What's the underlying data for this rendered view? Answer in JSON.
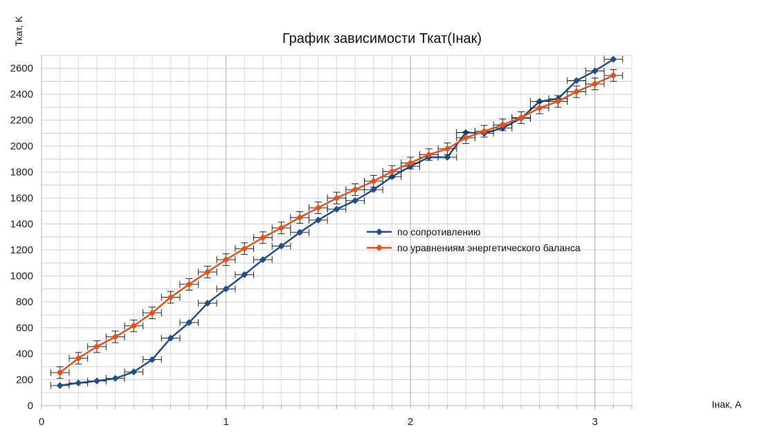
{
  "chart_data": {
    "type": "line",
    "title": "График зависимости Ткат(Iнак)",
    "xlabel": "Iнак, A",
    "ylabel": "Ткат, K",
    "xlim": [
      0,
      3.2
    ],
    "ylim": [
      0,
      2700
    ],
    "x_ticks": [
      0,
      1,
      2,
      3
    ],
    "y_ticks": [
      0,
      200,
      400,
      600,
      800,
      1000,
      1200,
      1400,
      1600,
      1800,
      2000,
      2200,
      2400,
      2600
    ],
    "x_minor_step": 0.1,
    "y_minor_step": 100,
    "grid": true,
    "legend_position": "center-right",
    "error_bars": {
      "x": 0.05,
      "y": 45
    },
    "series": [
      {
        "name": "по сопротивлению",
        "color": "#1f4e8c",
        "marker": "diamond",
        "show_y_error": false,
        "x": [
          0.1,
          0.2,
          0.3,
          0.4,
          0.5,
          0.6,
          0.7,
          0.8,
          0.9,
          1.0,
          1.1,
          1.2,
          1.3,
          1.4,
          1.5,
          1.6,
          1.7,
          1.8,
          1.9,
          2.0,
          2.1,
          2.2,
          2.3,
          2.4,
          2.5,
          2.6,
          2.7,
          2.8,
          2.9,
          3.0,
          3.1
        ],
        "y": [
          155,
          175,
          190,
          210,
          260,
          355,
          520,
          640,
          790,
          900,
          1010,
          1125,
          1230,
          1335,
          1430,
          1515,
          1580,
          1665,
          1765,
          1845,
          1915,
          1915,
          2105,
          2100,
          2140,
          2215,
          2345,
          2365,
          2505,
          2580,
          2670
        ]
      },
      {
        "name": "по уравнениям энергетического баланса",
        "color": "#e8501a",
        "marker": "diamond",
        "show_y_error": true,
        "x": [
          0.1,
          0.2,
          0.3,
          0.4,
          0.5,
          0.6,
          0.7,
          0.8,
          0.9,
          1.0,
          1.1,
          1.2,
          1.3,
          1.4,
          1.5,
          1.6,
          1.7,
          1.8,
          1.9,
          2.0,
          2.1,
          2.2,
          2.3,
          2.4,
          2.5,
          2.6,
          2.7,
          2.8,
          2.9,
          3.0,
          3.1
        ],
        "y": [
          255,
          365,
          455,
          530,
          615,
          715,
          835,
          935,
          1030,
          1125,
          1210,
          1295,
          1370,
          1450,
          1525,
          1600,
          1665,
          1730,
          1805,
          1870,
          1935,
          1980,
          2065,
          2115,
          2165,
          2220,
          2295,
          2345,
          2420,
          2480,
          2545
        ]
      }
    ]
  }
}
